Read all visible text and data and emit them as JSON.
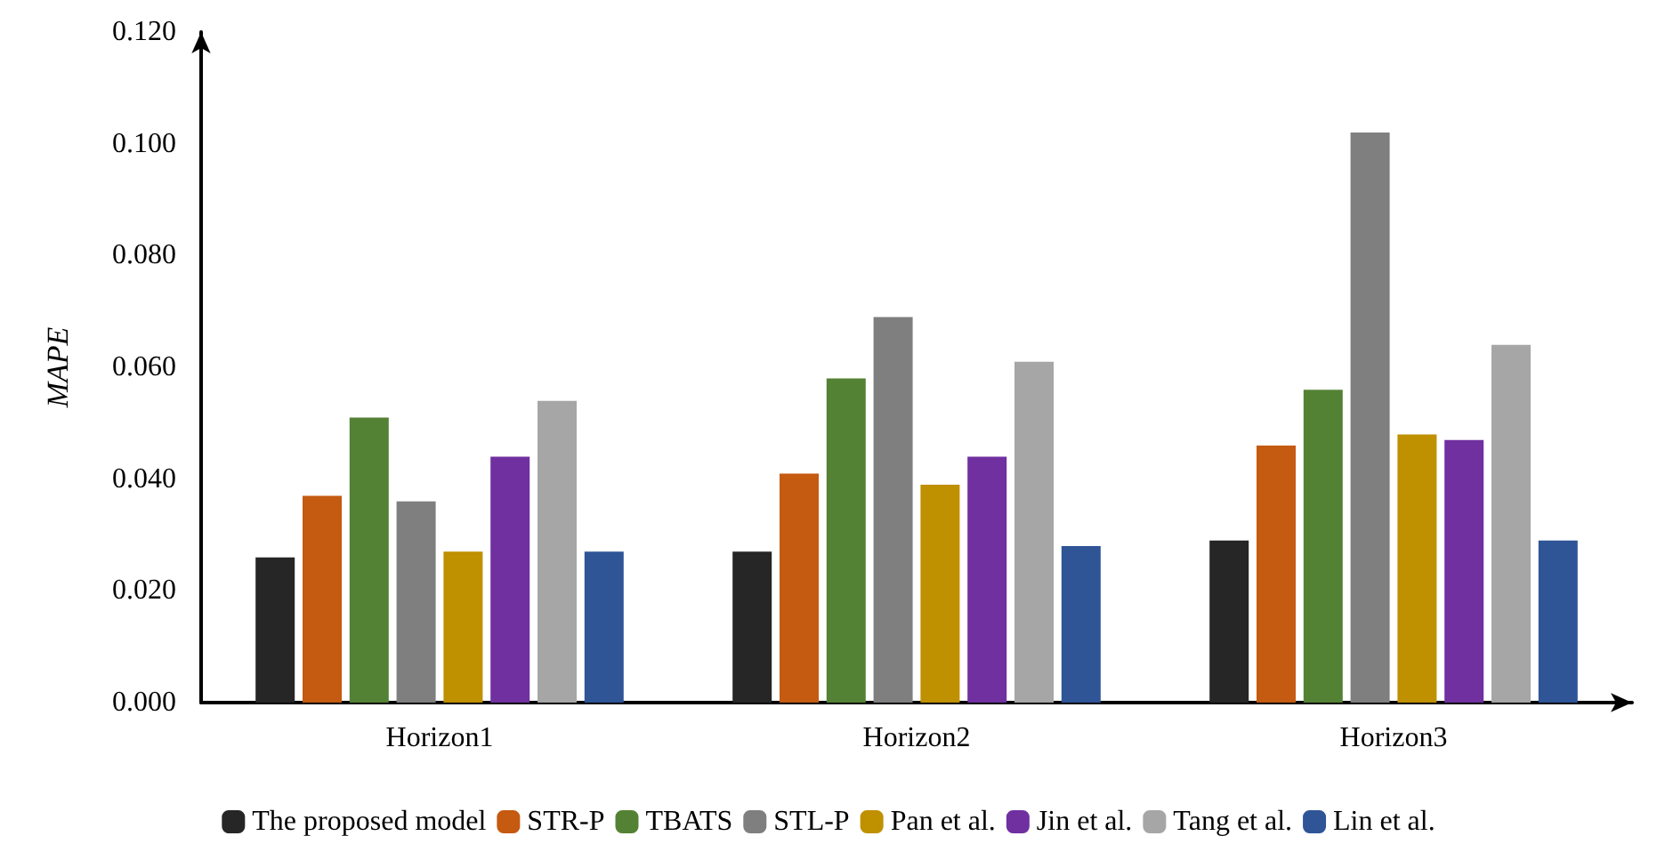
{
  "chart_data": {
    "type": "bar",
    "ylabel": "MAPE",
    "categories": [
      "Horizon1",
      "Horizon2",
      "Horizon3"
    ],
    "series": [
      {
        "name": "The proposed model",
        "color": "#262626",
        "values": [
          0.026,
          0.027,
          0.029
        ]
      },
      {
        "name": "STR-P",
        "color": "#c55a11",
        "values": [
          0.037,
          0.041,
          0.046
        ]
      },
      {
        "name": "TBATS",
        "color": "#548235",
        "values": [
          0.051,
          0.058,
          0.056
        ]
      },
      {
        "name": "STL-P",
        "color": "#7f7f7f",
        "values": [
          0.036,
          0.069,
          0.102
        ]
      },
      {
        "name": "Pan et al.",
        "color": "#bf9000",
        "values": [
          0.027,
          0.039,
          0.048
        ]
      },
      {
        "name": "Jin et al.",
        "color": "#7030a0",
        "values": [
          0.044,
          0.044,
          0.047
        ]
      },
      {
        "name": "Tang et al.",
        "color": "#a6a6a6",
        "values": [
          0.054,
          0.061,
          0.064
        ]
      },
      {
        "name": "Lin et al.",
        "color": "#2f5597",
        "values": [
          0.027,
          0.028,
          0.029
        ]
      }
    ],
    "ylim": [
      0,
      0.12
    ],
    "yticks": [
      {
        "value": 0,
        "label": "0.000"
      },
      {
        "value": 0.02,
        "label": "0.020"
      },
      {
        "value": 0.04,
        "label": "0.040"
      },
      {
        "value": 0.06,
        "label": "0.060"
      },
      {
        "value": 0.08,
        "label": "0.080"
      },
      {
        "value": 0.1,
        "label": "0.100"
      },
      {
        "value": 0.12,
        "label": "0.120"
      }
    ],
    "grid": false,
    "legend": "bottom"
  }
}
